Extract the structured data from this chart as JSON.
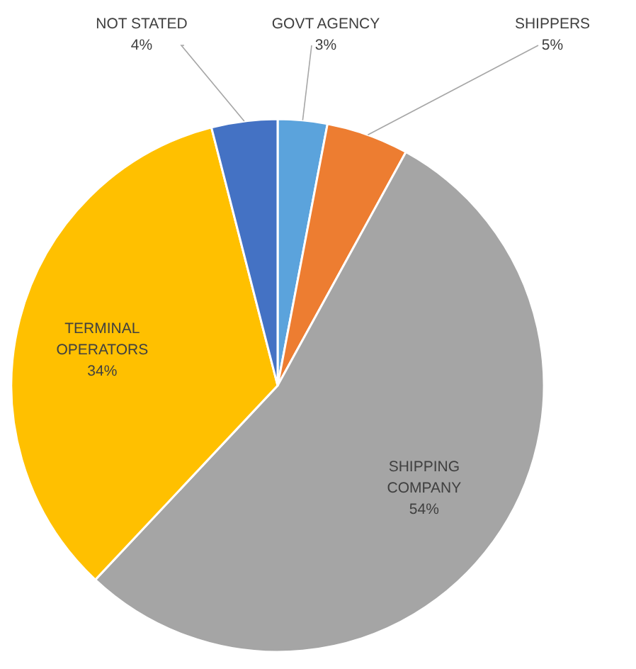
{
  "chart_data": {
    "type": "pie",
    "categories": [
      "GOVT AGENCY",
      "SHIPPERS",
      "SHIPPING COMPANY",
      "TERMINAL OPERATORS",
      "NOT STATED"
    ],
    "values": [
      3,
      5,
      54,
      34,
      4
    ],
    "colors": [
      "#5ba3dc",
      "#ed7d31",
      "#a5a5a5",
      "#ffc000",
      "#4472c4"
    ],
    "value_labels": [
      "3%",
      "5%",
      "54%",
      "34%",
      "4%"
    ]
  }
}
